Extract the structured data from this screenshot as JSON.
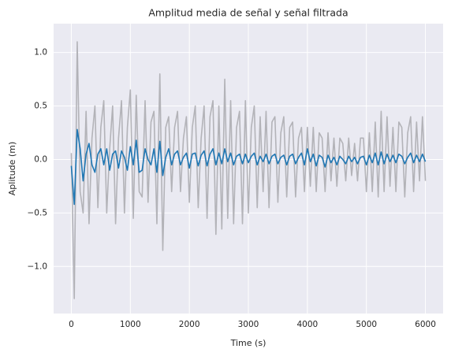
{
  "chart_data": {
    "type": "line",
    "title": "Amplitud media de señal y señal filtrada",
    "xlabel": "Time (s)",
    "ylabel": "Aplitude (m)",
    "x": [
      0,
      50,
      100,
      150,
      200,
      250,
      300,
      350,
      400,
      450,
      500,
      550,
      600,
      650,
      700,
      750,
      800,
      850,
      900,
      950,
      1000,
      1050,
      1100,
      1150,
      1200,
      1250,
      1300,
      1350,
      1400,
      1450,
      1500,
      1550,
      1600,
      1650,
      1700,
      1750,
      1800,
      1850,
      1900,
      1950,
      2000,
      2050,
      2100,
      2150,
      2200,
      2250,
      2300,
      2350,
      2400,
      2450,
      2500,
      2550,
      2600,
      2650,
      2700,
      2750,
      2800,
      2850,
      2900,
      2950,
      3000,
      3050,
      3100,
      3150,
      3200,
      3250,
      3300,
      3350,
      3400,
      3450,
      3500,
      3550,
      3600,
      3650,
      3700,
      3750,
      3800,
      3850,
      3900,
      3950,
      4000,
      4050,
      4100,
      4150,
      4200,
      4250,
      4300,
      4350,
      4400,
      4450,
      4500,
      4550,
      4600,
      4650,
      4700,
      4750,
      4800,
      4850,
      4900,
      4950,
      5000,
      5050,
      5100,
      5150,
      5200,
      5250,
      5300,
      5350,
      5400,
      5450,
      5500,
      5550,
      5600,
      5650,
      5700,
      5750,
      5800,
      5850,
      5900,
      5950,
      6000
    ],
    "series": [
      {
        "color": "#b3b3b8",
        "values": [
          0.06,
          -1.3,
          1.1,
          -0.3,
          -0.5,
          0.45,
          -0.6,
          0.2,
          0.5,
          -0.45,
          0.3,
          0.55,
          -0.5,
          0.1,
          0.5,
          -0.6,
          0.2,
          0.55,
          -0.5,
          0.3,
          0.65,
          -0.55,
          0.6,
          -0.3,
          -0.35,
          0.55,
          -0.4,
          0.35,
          0.45,
          -0.6,
          0.8,
          -0.85,
          0.3,
          0.4,
          -0.3,
          0.3,
          0.45,
          -0.3,
          0.2,
          0.4,
          -0.4,
          0.3,
          0.5,
          -0.45,
          0.2,
          0.5,
          -0.55,
          0.4,
          0.55,
          -0.7,
          0.5,
          -0.65,
          0.75,
          -0.55,
          0.55,
          -0.6,
          0.3,
          0.45,
          -0.6,
          0.55,
          -0.5,
          0.3,
          0.5,
          -0.45,
          0.4,
          -0.3,
          0.45,
          -0.45,
          0.35,
          0.4,
          -0.4,
          0.25,
          0.4,
          -0.35,
          0.3,
          0.35,
          -0.35,
          0.2,
          0.3,
          -0.3,
          0.3,
          -0.25,
          0.3,
          -0.3,
          0.25,
          0.2,
          -0.3,
          0.25,
          -0.2,
          0.2,
          -0.25,
          0.2,
          0.15,
          -0.2,
          0.2,
          -0.15,
          0.15,
          -0.2,
          0.2,
          0.2,
          -0.3,
          0.25,
          -0.3,
          0.35,
          -0.35,
          0.45,
          -0.3,
          0.4,
          -0.25,
          0.3,
          -0.3,
          0.35,
          0.3,
          -0.35,
          0.25,
          0.4,
          -0.3,
          0.35,
          -0.2,
          0.4,
          -0.2
        ]
      },
      {
        "color": "#1f77b4",
        "values": [
          -0.06,
          -0.42,
          0.28,
          0.1,
          -0.2,
          0.05,
          0.15,
          -0.05,
          -0.12,
          0.05,
          0.1,
          -0.05,
          0.1,
          -0.1,
          0.05,
          0.08,
          -0.08,
          0.08,
          0.02,
          -0.1,
          0.12,
          -0.05,
          0.18,
          -0.12,
          -0.1,
          0.1,
          0.0,
          -0.05,
          0.1,
          -0.12,
          0.17,
          -0.15,
          0.02,
          0.1,
          -0.05,
          0.05,
          0.08,
          -0.05,
          0.02,
          0.06,
          -0.08,
          0.05,
          0.06,
          -0.06,
          0.04,
          0.08,
          -0.06,
          0.05,
          0.1,
          -0.05,
          0.06,
          -0.04,
          0.1,
          -0.02,
          0.06,
          -0.05,
          0.03,
          0.05,
          -0.04,
          0.05,
          -0.03,
          0.03,
          0.06,
          -0.05,
          0.03,
          -0.02,
          0.05,
          -0.04,
          0.03,
          0.05,
          -0.04,
          0.02,
          0.04,
          -0.05,
          0.03,
          0.05,
          -0.04,
          0.02,
          0.06,
          -0.05,
          0.1,
          -0.02,
          0.05,
          -0.06,
          0.04,
          0.02,
          -0.07,
          0.04,
          -0.03,
          0.02,
          -0.05,
          0.03,
          0.0,
          -0.04,
          0.03,
          -0.02,
          0.02,
          -0.04,
          0.02,
          0.03,
          -0.05,
          0.04,
          -0.03,
          0.06,
          -0.05,
          0.07,
          -0.04,
          0.05,
          -0.02,
          0.04,
          -0.03,
          0.05,
          0.03,
          -0.04,
          0.02,
          0.06,
          -0.03,
          0.04,
          -0.02,
          0.05,
          -0.02
        ]
      }
    ],
    "xlim": [
      -300,
      6300
    ],
    "ylim": [
      -1.44,
      1.27
    ],
    "xticks": [
      0,
      1000,
      2000,
      3000,
      4000,
      5000,
      6000
    ],
    "yticks": [
      {
        "value": -1,
        "label": "−1.0"
      },
      {
        "value": -0.5,
        "label": "−0.5"
      },
      {
        "value": 0,
        "label": "0.0"
      },
      0.5,
      {
        "value": 1,
        "label": "1.0"
      }
    ],
    "grid": true
  }
}
